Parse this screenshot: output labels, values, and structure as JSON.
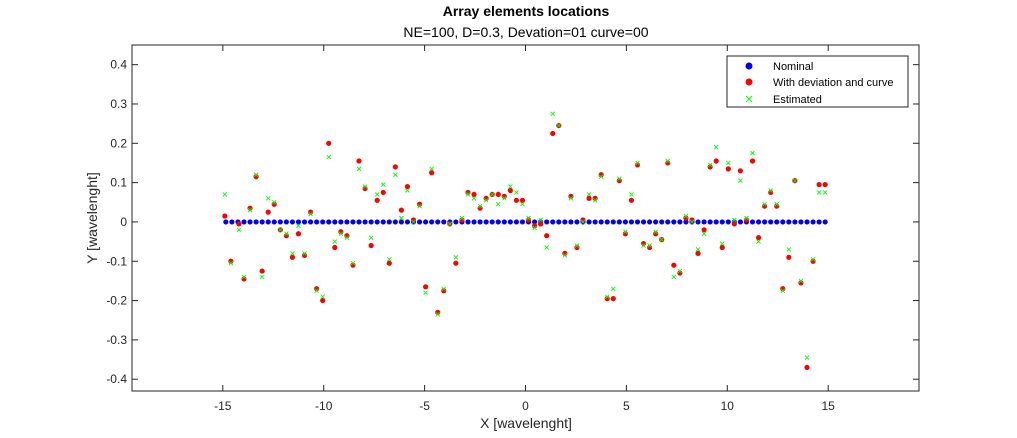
{
  "chart_data": {
    "type": "scatter",
    "title": "Array elements locations",
    "subtitle": "NE=100, D=0.3, Devation=01 curve=00",
    "xlabel": "X [wavelenght]",
    "ylabel": "Y [wavelenght]",
    "xlim": [
      -19.5,
      19.5
    ],
    "ylim": [
      -0.43,
      0.45
    ],
    "xticks": [
      -15,
      -10,
      -5,
      0,
      5,
      10,
      15
    ],
    "xtick_labels": [
      "-15",
      "-10",
      "-5",
      "0",
      "5",
      "10",
      "15"
    ],
    "yticks": [
      -0.4,
      -0.3,
      -0.2,
      -0.1,
      0,
      0.1,
      0.2,
      0.3,
      0.4
    ],
    "ytick_labels": [
      "-0.4",
      "-0.3",
      "-0.2",
      "-0.1",
      "0",
      "0.1",
      "0.2",
      "0.3",
      "0.4"
    ],
    "grid": false,
    "legend_position": "top-right",
    "series": [
      {
        "name": "Nominal",
        "marker": "dot",
        "color": "#0000ff",
        "x": [
          -14.85,
          -14.55,
          -14.25,
          -13.95,
          -13.65,
          -13.35,
          -13.05,
          -12.75,
          -12.45,
          -12.15,
          -11.85,
          -11.55,
          -11.25,
          -10.95,
          -10.65,
          -10.35,
          -10.05,
          -9.75,
          -9.45,
          -9.15,
          -8.85,
          -8.55,
          -8.25,
          -7.95,
          -7.65,
          -7.35,
          -7.05,
          -6.75,
          -6.45,
          -6.15,
          -5.85,
          -5.55,
          -5.25,
          -4.95,
          -4.65,
          -4.35,
          -4.05,
          -3.75,
          -3.45,
          -3.15,
          -2.85,
          -2.55,
          -2.25,
          -1.95,
          -1.65,
          -1.35,
          -1.05,
          -0.75,
          -0.45,
          -0.15,
          0.15,
          0.45,
          0.75,
          1.05,
          1.35,
          1.65,
          1.95,
          2.25,
          2.55,
          2.85,
          3.15,
          3.45,
          3.75,
          4.05,
          4.35,
          4.65,
          4.95,
          5.25,
          5.55,
          5.85,
          6.15,
          6.45,
          6.75,
          7.05,
          7.35,
          7.65,
          7.95,
          8.25,
          8.55,
          8.85,
          9.15,
          9.45,
          9.75,
          10.05,
          10.35,
          10.65,
          10.95,
          11.25,
          11.55,
          11.85,
          12.15,
          12.45,
          12.75,
          13.05,
          13.35,
          13.65,
          13.95,
          14.25,
          14.55,
          14.85
        ],
        "y": [
          0,
          0,
          0,
          0,
          0,
          0,
          0,
          0,
          0,
          0,
          0,
          0,
          0,
          0,
          0,
          0,
          0,
          0,
          0,
          0,
          0,
          0,
          0,
          0,
          0,
          0,
          0,
          0,
          0,
          0,
          0,
          0,
          0,
          0,
          0,
          0,
          0,
          0,
          0,
          0,
          0,
          0,
          0,
          0,
          0,
          0,
          0,
          0,
          0,
          0,
          0,
          0,
          0,
          0,
          0,
          0,
          0,
          0,
          0,
          0,
          0,
          0,
          0,
          0,
          0,
          0,
          0,
          0,
          0,
          0,
          0,
          0,
          0,
          0,
          0,
          0,
          0,
          0,
          0,
          0,
          0,
          0,
          0,
          0,
          0,
          0,
          0,
          0,
          0,
          0,
          0,
          0,
          0,
          0,
          0,
          0,
          0,
          0,
          0,
          0
        ]
      },
      {
        "name": "With deviation and curve",
        "marker": "dot",
        "color": "#ff0000",
        "x": [
          -14.9,
          -14.6,
          -14.2,
          -13.95,
          -13.65,
          -13.35,
          -13.05,
          -12.75,
          -12.45,
          -12.15,
          -11.85,
          -11.55,
          -11.25,
          -10.95,
          -10.65,
          -10.35,
          -10.05,
          -9.75,
          -9.45,
          -9.15,
          -8.85,
          -8.55,
          -8.25,
          -7.95,
          -7.65,
          -7.35,
          -7.05,
          -6.75,
          -6.45,
          -6.15,
          -5.85,
          -5.55,
          -5.25,
          -4.95,
          -4.65,
          -4.35,
          -4.05,
          -3.75,
          -3.45,
          -3.15,
          -2.85,
          -2.55,
          -2.25,
          -1.95,
          -1.65,
          -1.35,
          -1.05,
          -0.75,
          -0.45,
          -0.15,
          0.15,
          0.45,
          0.75,
          1.05,
          1.35,
          1.65,
          1.95,
          2.25,
          2.55,
          2.85,
          3.15,
          3.45,
          3.75,
          4.05,
          4.35,
          4.65,
          4.95,
          5.25,
          5.55,
          5.85,
          6.15,
          6.45,
          6.75,
          7.05,
          7.35,
          7.65,
          7.95,
          8.25,
          8.55,
          8.85,
          9.15,
          9.45,
          9.75,
          10.05,
          10.35,
          10.65,
          10.95,
          11.25,
          11.55,
          11.85,
          12.15,
          12.45,
          12.75,
          13.05,
          13.35,
          13.65,
          13.95,
          14.25,
          14.55,
          14.85
        ],
        "y": [
          0.015,
          -0.1,
          -0.005,
          -0.145,
          0.035,
          0.115,
          -0.125,
          0.025,
          0.045,
          -0.02,
          -0.035,
          -0.09,
          -0.03,
          -0.085,
          0.025,
          -0.17,
          -0.2,
          0.2,
          -0.065,
          -0.025,
          -0.035,
          -0.11,
          0.155,
          0.085,
          -0.06,
          0.055,
          0.075,
          -0.105,
          0.14,
          0.03,
          0.09,
          0.005,
          0.045,
          -0.165,
          0.125,
          -0.23,
          -0.175,
          -0.005,
          -0.105,
          0.005,
          0.075,
          0.07,
          0.035,
          0.06,
          0.07,
          0.07,
          0.065,
          0.08,
          0.055,
          0.055,
          0.005,
          -0.01,
          -0.005,
          -0.035,
          0.225,
          0.245,
          -0.08,
          0.065,
          -0.065,
          0.005,
          0.06,
          0.06,
          0.12,
          -0.195,
          -0.195,
          0.105,
          -0.03,
          0.055,
          0.145,
          -0.055,
          -0.065,
          -0.03,
          -0.045,
          0.15,
          -0.11,
          -0.13,
          0.01,
          0.005,
          -0.08,
          -0.02,
          0.14,
          0.155,
          -0.065,
          0.135,
          -0.005,
          0.13,
          0.005,
          0.155,
          -0.04,
          0.04,
          0.075,
          0.04,
          -0.17,
          -0.09,
          0.105,
          -0.155,
          -0.37,
          -0.1,
          0.095,
          0.095
        ]
      },
      {
        "name": "Estimated",
        "marker": "x",
        "color": "#00ff00",
        "x": [
          -14.9,
          -14.6,
          -14.2,
          -13.95,
          -13.65,
          -13.35,
          -13.05,
          -12.75,
          -12.45,
          -12.15,
          -11.85,
          -11.55,
          -11.25,
          -10.95,
          -10.65,
          -10.35,
          -10.05,
          -9.75,
          -9.45,
          -9.15,
          -8.85,
          -8.55,
          -8.25,
          -7.95,
          -7.65,
          -7.35,
          -7.05,
          -6.75,
          -6.45,
          -6.15,
          -5.85,
          -5.55,
          -5.25,
          -4.95,
          -4.65,
          -4.35,
          -4.05,
          -3.75,
          -3.45,
          -3.15,
          -2.85,
          -2.55,
          -2.25,
          -1.95,
          -1.65,
          -1.35,
          -1.05,
          -0.75,
          -0.45,
          -0.15,
          0.15,
          0.45,
          0.75,
          1.05,
          1.35,
          1.65,
          1.95,
          2.25,
          2.55,
          2.85,
          3.15,
          3.45,
          3.75,
          4.05,
          4.35,
          4.65,
          4.95,
          5.25,
          5.55,
          5.85,
          6.15,
          6.45,
          6.75,
          7.05,
          7.35,
          7.65,
          7.95,
          8.25,
          8.55,
          8.85,
          9.15,
          9.45,
          9.75,
          10.05,
          10.35,
          10.65,
          10.95,
          11.25,
          11.55,
          11.85,
          12.15,
          12.45,
          12.75,
          13.05,
          13.35,
          13.65,
          13.95,
          14.25,
          14.55,
          14.85
        ],
        "y": [
          0.07,
          -0.105,
          -0.02,
          -0.14,
          0.03,
          0.12,
          -0.14,
          0.06,
          0.05,
          -0.02,
          -0.03,
          -0.08,
          -0.01,
          -0.08,
          0.02,
          -0.175,
          -0.19,
          0.165,
          -0.05,
          -0.03,
          -0.04,
          -0.105,
          0.135,
          0.09,
          -0.04,
          0.07,
          0.095,
          -0.095,
          0.12,
          0.01,
          0.08,
          0,
          0.04,
          -0.18,
          0.135,
          -0.235,
          -0.17,
          -0.005,
          -0.09,
          0.01,
          0.07,
          0.06,
          0.04,
          0.055,
          0.07,
          0.045,
          0.06,
          0.09,
          0.075,
          0.045,
          0.01,
          -0.015,
          0.005,
          -0.065,
          0.275,
          0.245,
          -0.085,
          0.06,
          -0.06,
          0,
          0.07,
          0.055,
          0.115,
          -0.19,
          -0.17,
          0.11,
          -0.025,
          0.07,
          0.15,
          -0.06,
          -0.06,
          -0.025,
          -0.045,
          0.155,
          -0.14,
          -0.125,
          0.015,
          0,
          -0.07,
          -0.03,
          0.145,
          0.19,
          -0.055,
          0.15,
          0.005,
          0.105,
          0.01,
          0.175,
          -0.05,
          0.045,
          0.08,
          0.045,
          -0.175,
          -0.07,
          0.105,
          -0.15,
          -0.345,
          -0.095,
          0.075,
          0.075
        ]
      }
    ]
  }
}
